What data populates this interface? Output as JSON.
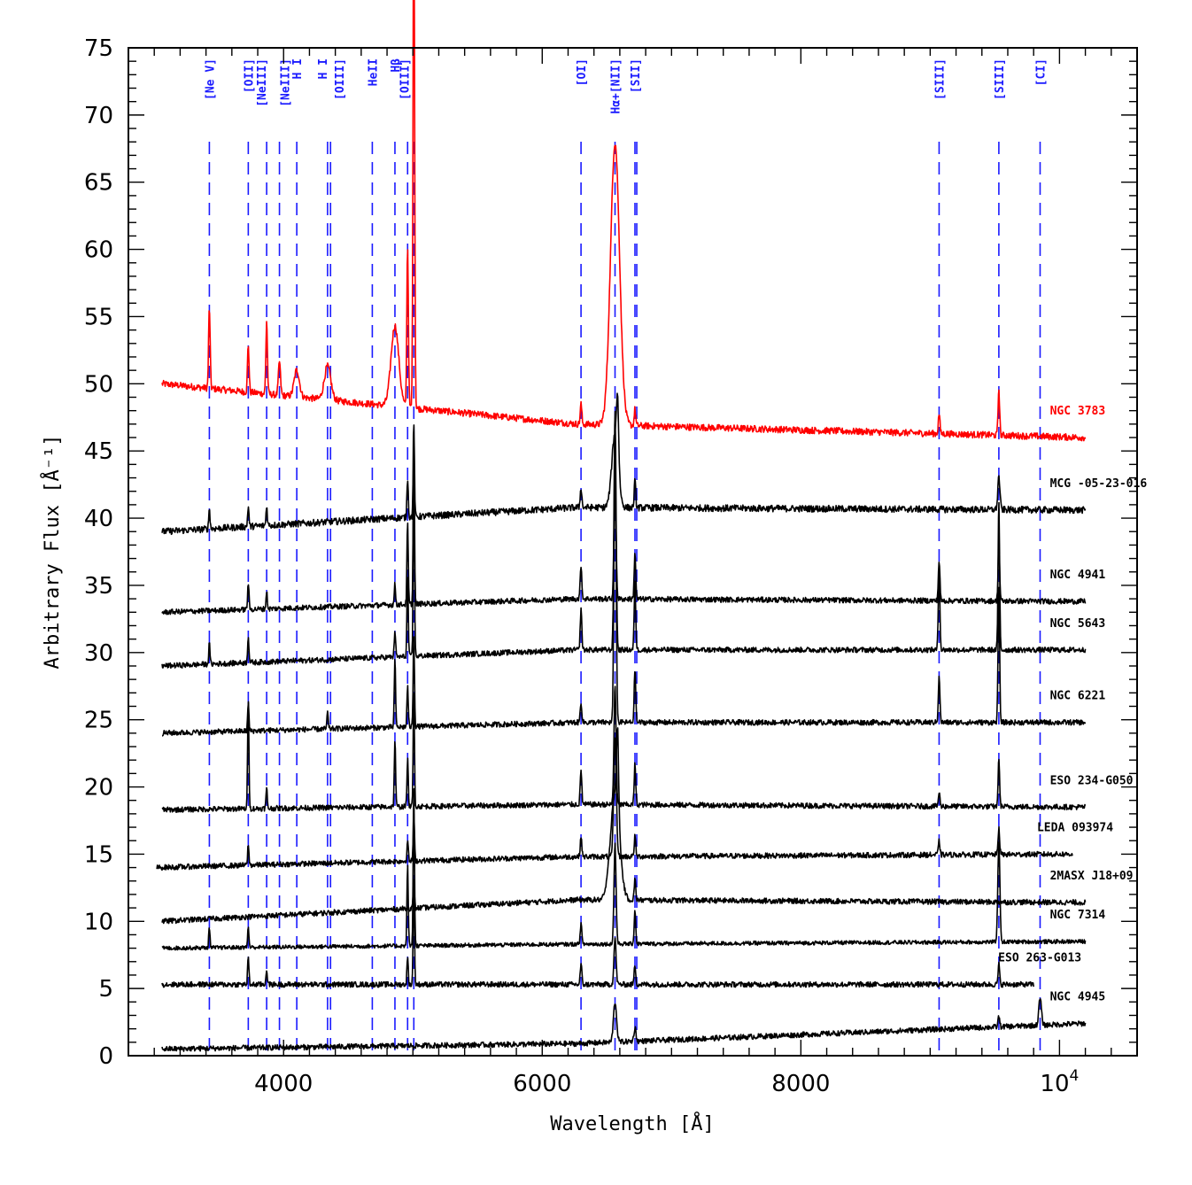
{
  "chart_data": {
    "type": "line",
    "title": "",
    "xlabel": "Wavelength [Å]",
    "ylabel": "Arbitrary Flux [Å⁻¹]",
    "xlim": [
      2800,
      10600
    ],
    "ylim": [
      0,
      75
    ],
    "x_ticks": [
      {
        "value": 4000,
        "label": "4000"
      },
      {
        "value": 6000,
        "label": "6000"
      },
      {
        "value": 8000,
        "label": "8000"
      },
      {
        "value": 10000,
        "label": "10",
        "sup": "4"
      }
    ],
    "y_ticks": [
      0,
      5,
      10,
      15,
      20,
      25,
      30,
      35,
      40,
      45,
      50,
      55,
      60,
      65,
      70,
      75
    ],
    "lines": [
      {
        "label": "[Ne V]",
        "wavelength": 3426
      },
      {
        "label": "[OII]",
        "wavelength": 3727
      },
      {
        "label": "[NeIII]",
        "wavelength": 3869
      },
      {
        "label": "[NeIII]",
        "wavelength": 3968
      },
      {
        "label": "H I",
        "wavelength": 4102
      },
      {
        "label": "H I",
        "wavelength": 4340
      },
      {
        "label": "[OIII]",
        "wavelength": 4363
      },
      {
        "label": "HeII",
        "wavelength": 4686
      },
      {
        "label": "Hβ",
        "wavelength": 4861
      },
      {
        "label": "[OIII]",
        "wavelength": 4959
      },
      {
        "label": "",
        "wavelength": 5007
      },
      {
        "label": "[OI]",
        "wavelength": 6300
      },
      {
        "label": "Hα+[NII]",
        "wavelength": 6563
      },
      {
        "label": "[SII]",
        "wavelength": 6717
      },
      {
        "label": "",
        "wavelength": 6731
      },
      {
        "label": "[SIII]",
        "wavelength": 9069
      },
      {
        "label": "[SIII]",
        "wavelength": 9531
      },
      {
        "label": "[CI]",
        "wavelength": 9850
      }
    ],
    "series": [
      {
        "name": "NGC 3783",
        "color": "#ff0000",
        "label_color": "#ff0000",
        "x_start": 3060,
        "x_end": 10200,
        "base_start": 50.0,
        "base_mid": 47.0,
        "base_end": 46.0,
        "noise": 0.25,
        "peaks": [
          [
            3426,
            6.0,
            6
          ],
          [
            3727,
            3.5,
            6
          ],
          [
            3869,
            5.5,
            6
          ],
          [
            3968,
            2.5,
            8
          ],
          [
            4102,
            2.0,
            20
          ],
          [
            4340,
            2.5,
            25
          ],
          [
            4861,
            6.0,
            30
          ],
          [
            4959,
            12.0,
            6
          ],
          [
            5007,
            40.0,
            6
          ],
          [
            6300,
            1.5,
            6
          ],
          [
            6563,
            21.0,
            35
          ],
          [
            6717,
            1.2,
            6
          ],
          [
            9069,
            1.5,
            6
          ],
          [
            9531,
            3.5,
            6
          ]
        ]
      },
      {
        "name": "MCG -05-23-016",
        "color": "#000000",
        "label_color": "#000000",
        "x_start": 3060,
        "x_end": 10200,
        "base_start": 39.0,
        "base_mid": 40.8,
        "base_end": 40.6,
        "noise": 0.25,
        "peaks": [
          [
            3426,
            1.5,
            5
          ],
          [
            3727,
            1.5,
            5
          ],
          [
            3869,
            1.5,
            5
          ],
          [
            4959,
            3.0,
            5
          ],
          [
            5007,
            7.0,
            5
          ],
          [
            6300,
            1.5,
            6
          ],
          [
            6563,
            5.5,
            25
          ],
          [
            6583,
            4.5,
            8
          ],
          [
            6717,
            2.0,
            6
          ],
          [
            9531,
            2.5,
            8
          ]
        ]
      },
      {
        "name": "NGC 4941",
        "color": "#000000",
        "label_color": "#000000",
        "x_start": 3060,
        "x_end": 10200,
        "base_start": 33.0,
        "base_mid": 34.0,
        "base_end": 33.8,
        "noise": 0.2,
        "peaks": [
          [
            3727,
            2.0,
            5
          ],
          [
            3869,
            1.3,
            5
          ],
          [
            4861,
            1.5,
            5
          ],
          [
            4959,
            6.0,
            5
          ],
          [
            5007,
            12.0,
            5
          ],
          [
            6300,
            2.5,
            6
          ],
          [
            6563,
            9.0,
            8
          ],
          [
            6717,
            3.5,
            6
          ],
          [
            9069,
            3.0,
            6
          ],
          [
            9531,
            4.5,
            6
          ]
        ]
      },
      {
        "name": "NGC 5643",
        "color": "#000000",
        "label_color": "#000000",
        "x_start": 3060,
        "x_end": 10200,
        "base_start": 29.0,
        "base_mid": 30.2,
        "base_end": 30.2,
        "noise": 0.2,
        "peaks": [
          [
            3426,
            1.5,
            5
          ],
          [
            3727,
            2.0,
            5
          ],
          [
            4861,
            2.0,
            5
          ],
          [
            4959,
            6.0,
            5
          ],
          [
            5007,
            14.0,
            5
          ],
          [
            6300,
            3.0,
            6
          ],
          [
            6563,
            18.0,
            8
          ],
          [
            6717,
            5.0,
            6
          ],
          [
            9069,
            6.0,
            6
          ],
          [
            9531,
            11.0,
            6
          ]
        ]
      },
      {
        "name": "NGC 6221",
        "color": "#000000",
        "label_color": "#000000",
        "x_start": 3060,
        "x_end": 10200,
        "base_start": 24.0,
        "base_mid": 24.8,
        "base_end": 24.8,
        "noise": 0.2,
        "peaks": [
          [
            3727,
            2.0,
            5
          ],
          [
            4340,
            1.2,
            5
          ],
          [
            4861,
            5.0,
            5
          ],
          [
            4959,
            3.0,
            5
          ],
          [
            5007,
            7.0,
            5
          ],
          [
            6300,
            1.5,
            6
          ],
          [
            6563,
            22.0,
            8
          ],
          [
            6717,
            4.0,
            6
          ],
          [
            9069,
            3.5,
            6
          ],
          [
            9531,
            10.0,
            6
          ]
        ]
      },
      {
        "name": "ESO 234-G050",
        "color": "#000000",
        "label_color": "#000000",
        "x_start": 3060,
        "x_end": 10200,
        "base_start": 18.3,
        "base_mid": 18.7,
        "base_end": 18.5,
        "noise": 0.2,
        "peaks": [
          [
            3727,
            8.0,
            5
          ],
          [
            3869,
            1.5,
            5
          ],
          [
            4861,
            5.0,
            5
          ],
          [
            4959,
            3.5,
            5
          ],
          [
            5007,
            8.5,
            5
          ],
          [
            6300,
            2.5,
            6
          ],
          [
            6563,
            9.0,
            8
          ],
          [
            6717,
            3.0,
            6
          ],
          [
            9069,
            1.0,
            6
          ],
          [
            9531,
            3.5,
            6
          ]
        ]
      },
      {
        "name": "LEDA 093974",
        "color": "#000000",
        "label_color": "#000000",
        "x_start": 3020,
        "x_end": 10100,
        "base_start": 14.0,
        "base_mid": 14.8,
        "base_end": 15.0,
        "noise": 0.2,
        "peaks": [
          [
            3727,
            1.5,
            5
          ],
          [
            4959,
            1.5,
            5
          ],
          [
            5007,
            3.5,
            5
          ],
          [
            6300,
            1.5,
            6
          ],
          [
            6563,
            9.0,
            10
          ],
          [
            6717,
            1.5,
            6
          ],
          [
            9069,
            1.0,
            6
          ],
          [
            9531,
            2.0,
            6
          ]
        ]
      },
      {
        "name": "2MASX J18+09",
        "color": "#000000",
        "label_color": "#000000",
        "x_start": 3060,
        "x_end": 10200,
        "base_start": 10.0,
        "base_mid": 11.6,
        "base_end": 11.4,
        "noise": 0.2,
        "peaks": [
          [
            5007,
            2.0,
            5
          ],
          [
            6563,
            8.0,
            35
          ],
          [
            6583,
            6.0,
            8
          ],
          [
            6717,
            1.5,
            6
          ]
        ]
      },
      {
        "name": "NGC 7314",
        "color": "#000000",
        "label_color": "#000000",
        "x_start": 3060,
        "x_end": 10200,
        "base_start": 8.0,
        "base_mid": 8.3,
        "base_end": 8.5,
        "noise": 0.15,
        "peaks": [
          [
            3426,
            1.5,
            5
          ],
          [
            3727,
            1.5,
            5
          ],
          [
            4959,
            6.0,
            5
          ],
          [
            5007,
            12.0,
            5
          ],
          [
            6300,
            1.5,
            6
          ],
          [
            6563,
            7.5,
            8
          ],
          [
            6717,
            2.5,
            6
          ],
          [
            9531,
            7.5,
            8
          ]
        ]
      },
      {
        "name": "ESO 263-G013",
        "color": "#000000",
        "label_color": "#000000",
        "x_start": 3060,
        "x_end": 9800,
        "base_start": 5.3,
        "base_mid": 5.3,
        "base_end": 5.3,
        "noise": 0.2,
        "peaks": [
          [
            3727,
            2.0,
            5
          ],
          [
            3869,
            1.2,
            5
          ],
          [
            4959,
            2.0,
            5
          ],
          [
            5007,
            8.0,
            5
          ],
          [
            6300,
            1.5,
            6
          ],
          [
            6563,
            3.5,
            8
          ],
          [
            6717,
            1.5,
            6
          ],
          [
            9531,
            1.5,
            6
          ]
        ]
      },
      {
        "name": "NGC 4945",
        "color": "#000000",
        "label_color": "#000000",
        "x_start": 3060,
        "x_end": 10200,
        "base_start": 0.5,
        "base_mid": 0.9,
        "base_end": 2.4,
        "noise": 0.2,
        "peaks": [
          [
            6563,
            3.0,
            12
          ],
          [
            6717,
            1.0,
            8
          ],
          [
            9531,
            0.8,
            6
          ],
          [
            9850,
            2.0,
            10
          ]
        ]
      }
    ]
  }
}
